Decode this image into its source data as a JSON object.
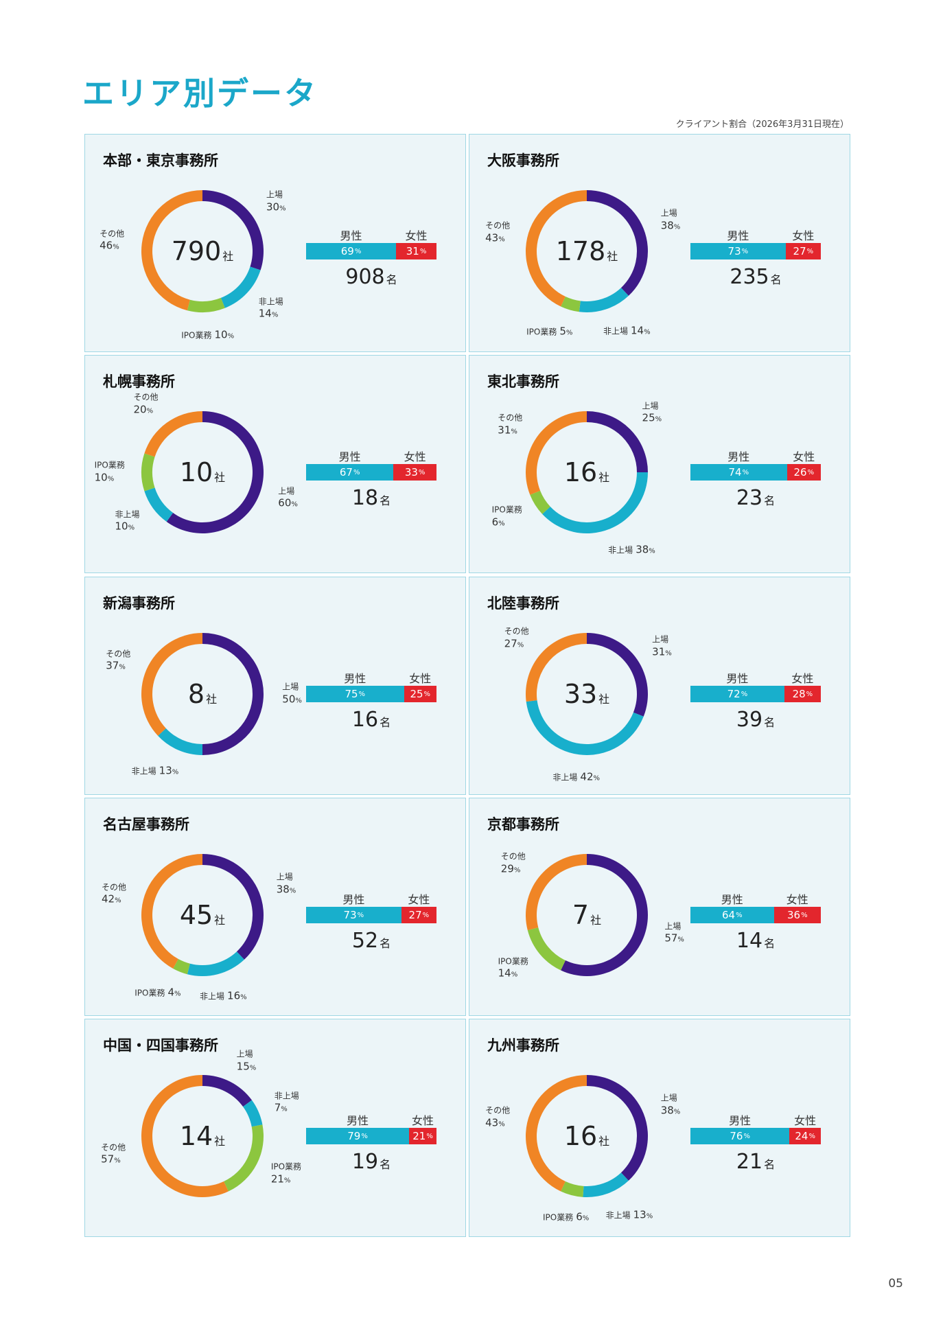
{
  "page": {
    "title": "エリア別データ",
    "note": "クライアント割合（2026年3月31日現在）",
    "page_number": "05"
  },
  "legend": {
    "male": "男性",
    "female": "女性"
  },
  "units": {
    "company": "社",
    "staff": "名",
    "percent": "%"
  },
  "colors": {
    "上場": "#3d1a87",
    "非上場": "#18afcc",
    "IPO業務": "#8cc63f",
    "その他": "#f08525",
    "male": "#18afcc",
    "female": "#e3262d",
    "title": "#1ba7c9",
    "panel_bg": "#ecf5f8",
    "panel_border": "#9fd7e4"
  },
  "chart_data": [
    {
      "type": "donut",
      "office": "本部・東京事務所",
      "companies": "790",
      "segments": [
        {
          "name": "上場",
          "value": 30
        },
        {
          "name": "非上場",
          "value": 14
        },
        {
          "name": "IPO業務",
          "value": 10
        },
        {
          "name": "その他",
          "value": 46
        }
      ],
      "gender": {
        "male": 69,
        "female": 31
      },
      "staff": "908"
    },
    {
      "type": "donut",
      "office": "大阪事務所",
      "companies": "178",
      "segments": [
        {
          "name": "上場",
          "value": 38
        },
        {
          "name": "非上場",
          "value": 14
        },
        {
          "name": "IPO業務",
          "value": 5
        },
        {
          "name": "その他",
          "value": 43
        }
      ],
      "gender": {
        "male": 73,
        "female": 27
      },
      "staff": "235"
    },
    {
      "type": "donut",
      "office": "札幌事務所",
      "companies": "10",
      "segments": [
        {
          "name": "上場",
          "value": 60
        },
        {
          "name": "非上場",
          "value": 10
        },
        {
          "name": "IPO業務",
          "value": 10
        },
        {
          "name": "その他",
          "value": 20
        }
      ],
      "gender": {
        "male": 67,
        "female": 33
      },
      "staff": "18"
    },
    {
      "type": "donut",
      "office": "東北事務所",
      "companies": "16",
      "segments": [
        {
          "name": "上場",
          "value": 25
        },
        {
          "name": "非上場",
          "value": 38
        },
        {
          "name": "IPO業務",
          "value": 6
        },
        {
          "name": "その他",
          "value": 31
        }
      ],
      "gender": {
        "male": 74,
        "female": 26
      },
      "staff": "23"
    },
    {
      "type": "donut",
      "office": "新潟事務所",
      "companies": "8",
      "segments": [
        {
          "name": "上場",
          "value": 50
        },
        {
          "name": "非上場",
          "value": 13
        },
        {
          "name": "その他",
          "value": 37
        }
      ],
      "gender": {
        "male": 75,
        "female": 25
      },
      "staff": "16"
    },
    {
      "type": "donut",
      "office": "北陸事務所",
      "companies": "33",
      "segments": [
        {
          "name": "上場",
          "value": 31
        },
        {
          "name": "非上場",
          "value": 42
        },
        {
          "name": "その他",
          "value": 27
        }
      ],
      "gender": {
        "male": 72,
        "female": 28
      },
      "staff": "39"
    },
    {
      "type": "donut",
      "office": "名古屋事務所",
      "companies": "45",
      "segments": [
        {
          "name": "上場",
          "value": 38
        },
        {
          "name": "非上場",
          "value": 16
        },
        {
          "name": "IPO業務",
          "value": 4
        },
        {
          "name": "その他",
          "value": 42
        }
      ],
      "gender": {
        "male": 73,
        "female": 27
      },
      "staff": "52"
    },
    {
      "type": "donut",
      "office": "京都事務所",
      "companies": "7",
      "segments": [
        {
          "name": "上場",
          "value": 57
        },
        {
          "name": "IPO業務",
          "value": 14
        },
        {
          "name": "その他",
          "value": 29
        }
      ],
      "gender": {
        "male": 64,
        "female": 36
      },
      "staff": "14"
    },
    {
      "type": "donut",
      "office": "中国・四国事務所",
      "companies": "14",
      "segments": [
        {
          "name": "上場",
          "value": 15
        },
        {
          "name": "非上場",
          "value": 7
        },
        {
          "name": "IPO業務",
          "value": 21
        },
        {
          "name": "その他",
          "value": 57
        }
      ],
      "gender": {
        "male": 79,
        "female": 21
      },
      "staff": "19"
    },
    {
      "type": "donut",
      "office": "九州事務所",
      "companies": "16",
      "segments": [
        {
          "name": "上場",
          "value": 38
        },
        {
          "name": "非上場",
          "value": 13
        },
        {
          "name": "IPO業務",
          "value": 6
        },
        {
          "name": "その他",
          "value": 43
        }
      ],
      "gender": {
        "male": 76,
        "female": 24
      },
      "staff": "21"
    }
  ]
}
